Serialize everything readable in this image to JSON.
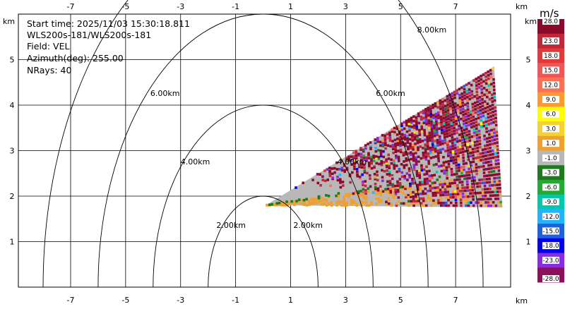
{
  "info": {
    "start_time": "Start time: 2025/11/03 15:30:18.811",
    "instrument": "WLS200s-181/WLS200s-181",
    "field": "Field: VEL",
    "azimuth": "Azimuth(deg): 255.00",
    "nrays": "NRays: 40"
  },
  "colorbar": {
    "unit": "m/s",
    "labels": [
      "28.0",
      "23.0",
      "18.0",
      "15.0",
      "12.0",
      "9.0",
      "6.0",
      "3.0",
      "1.0",
      "-1.0",
      "-3.0",
      "-6.0",
      "-9.0",
      "-12.0",
      "-15.0",
      "-18.0",
      "-23.0",
      "-28.0"
    ],
    "colors": [
      "#8b0a2a",
      "#c0273a",
      "#e23a3a",
      "#f25555",
      "#ff6e55",
      "#ff9a33",
      "#ffff00",
      "#f5d233",
      "#f0a030",
      "#b8b8b8",
      "#1f7a1f",
      "#22aa33",
      "#00c8aa",
      "#22b4ff",
      "#1f5fe0",
      "#0000ee",
      "#8a2be2",
      "#8b0f5a"
    ]
  },
  "chart_data": {
    "type": "heatmap",
    "title": "",
    "xlabel": "km",
    "ylabel": "km",
    "xlim": [
      -8.9,
      9.0
    ],
    "ylim": [
      0.0,
      6.0
    ],
    "xticks": [
      -7,
      -5,
      -3,
      -1,
      1,
      3,
      5,
      7
    ],
    "yticks": [
      1,
      2,
      3,
      4,
      5
    ],
    "grid": true,
    "range_rings": [
      {
        "label": "2.00km",
        "semi_x_km": 2.0,
        "semi_y_km": 2.0
      },
      {
        "label": "4.00km",
        "semi_x_km": 4.0,
        "semi_y_km": 4.0
      },
      {
        "label": "6.00km",
        "semi_x_km": 6.0,
        "semi_y_km": 6.0
      },
      {
        "label": "8.00km",
        "semi_x_km": 8.0,
        "semi_y_km": 8.0
      }
    ],
    "ring_label_positions_km": [
      {
        "text": "2.00km",
        "x": -1.7,
        "y": 1.3
      },
      {
        "text": "2.00km",
        "x": 1.1,
        "y": 1.3
      },
      {
        "text": "4.00km",
        "x": -3.0,
        "y": 2.7
      },
      {
        "text": "4.00km",
        "x": 2.7,
        "y": 2.7
      },
      {
        "text": "6.00km",
        "x": -4.1,
        "y": 4.2
      },
      {
        "text": "6.00km",
        "x": 4.1,
        "y": 4.2
      },
      {
        "text": "8.00km",
        "x": 5.6,
        "y": 5.6
      }
    ],
    "sector": {
      "azimuth_deg": 255.0,
      "apex_km": [
        0.1,
        1.8
      ],
      "bottom_edge_end_km": [
        8.7,
        1.75
      ],
      "top_edge_end_km": [
        8.4,
        4.85
      ],
      "field": "VEL",
      "value_range": [
        -28.0,
        28.0
      ]
    }
  }
}
